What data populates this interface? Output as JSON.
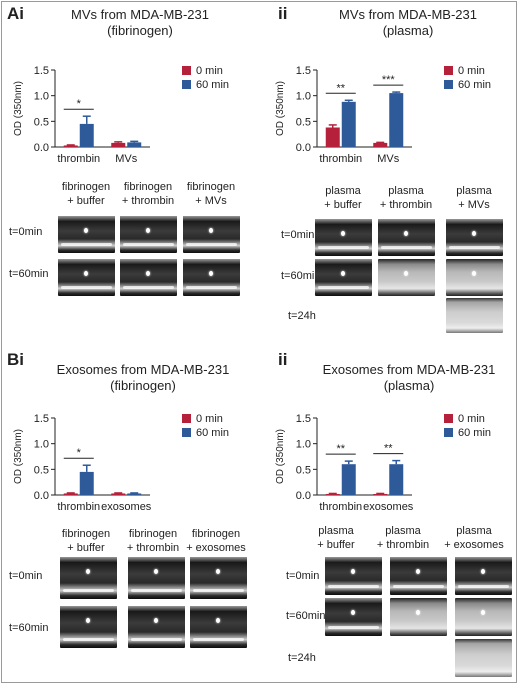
{
  "panels": {
    "A": {
      "letter": "Ai",
      "sub": "ii"
    },
    "B": {
      "letter": "Bi",
      "sub": "ii"
    }
  },
  "labels": {
    "t0": "t=0min",
    "t60": "t=60min",
    "t24": "t=24h",
    "fib_buffer": "fibrinogen\n+ buffer",
    "fib_thrombin": "fibrinogen\n+ thrombin",
    "fib_mvs": "fibrinogen\n+ MVs",
    "fib_exosomes": "fibrinogen\n+ exosomes",
    "pl_buffer": "plasma\n+ buffer",
    "pl_thrombin": "plasma\n+ thrombin",
    "pl_mvs": "plasma\n+ MVs",
    "pl_exosomes": "plasma\n+ exosomes"
  },
  "colors": {
    "series_0min": "#b5213a",
    "series_60min": "#2f5a9a",
    "text": "#222222"
  },
  "chart_data": [
    {
      "id": "Ai",
      "type": "bar",
      "title": "MVs from MDA-MB-231\n(fibrinogen)",
      "ylabel": "OD (350nm)",
      "ylim": [
        0,
        1.5
      ],
      "yticks": [
        "0.0",
        "0.5",
        "1.0",
        "1.5"
      ],
      "categories": [
        "thrombin",
        "MVs"
      ],
      "series": [
        {
          "name": "0 min",
          "values": [
            0.03,
            0.08
          ],
          "errors": [
            0.01,
            0.02
          ]
        },
        {
          "name": "60 min",
          "values": [
            0.45,
            0.09
          ],
          "errors": [
            0.15,
            0.02
          ]
        }
      ],
      "significance": [
        {
          "category": 0,
          "label": "*"
        }
      ]
    },
    {
      "id": "Aii",
      "type": "bar",
      "title": "MVs from MDA-MB-231\n(plasma)",
      "ylabel": "OD (350nm)",
      "ylim": [
        0,
        1.5
      ],
      "yticks": [
        "0.0",
        "0.5",
        "1.0",
        "1.5"
      ],
      "categories": [
        "thrombin",
        "MVs"
      ],
      "series": [
        {
          "name": "0 min",
          "values": [
            0.38,
            0.08
          ],
          "errors": [
            0.05,
            0.01
          ]
        },
        {
          "name": "60 min",
          "values": [
            0.88,
            1.05
          ],
          "errors": [
            0.03,
            0.02
          ]
        }
      ],
      "significance": [
        {
          "category": 0,
          "label": "**"
        },
        {
          "category": 1,
          "label": "***"
        }
      ]
    },
    {
      "id": "Bi",
      "type": "bar",
      "title": "Exosomes from MDA-MB-231\n(fibrinogen)",
      "ylabel": "OD (350nm)",
      "ylim": [
        0,
        1.5
      ],
      "yticks": [
        "0.0",
        "0.5",
        "1.0",
        "1.5"
      ],
      "categories": [
        "thrombin",
        "exosomes"
      ],
      "series": [
        {
          "name": "0 min",
          "values": [
            0.03,
            0.03
          ],
          "errors": [
            0.01,
            0.01
          ]
        },
        {
          "name": "60 min",
          "values": [
            0.45,
            0.03
          ],
          "errors": [
            0.13,
            0.01
          ]
        }
      ],
      "significance": [
        {
          "category": 0,
          "label": "*"
        }
      ]
    },
    {
      "id": "Bii",
      "type": "bar",
      "title": "Exosomes from MDA-MB-231\n(plasma)",
      "ylabel": "OD (350nm)",
      "ylim": [
        0,
        1.5
      ],
      "yticks": [
        "0.0",
        "0.5",
        "1.0",
        "1.5"
      ],
      "categories": [
        "thrombin",
        "exosomes"
      ],
      "series": [
        {
          "name": "0 min",
          "values": [
            0.02,
            0.02
          ],
          "errors": [
            0.01,
            0.01
          ]
        },
        {
          "name": "60 min",
          "values": [
            0.6,
            0.6
          ],
          "errors": [
            0.06,
            0.07
          ]
        }
      ],
      "significance": [
        {
          "category": 0,
          "label": "**"
        },
        {
          "category": 1,
          "label": "**"
        }
      ]
    }
  ]
}
